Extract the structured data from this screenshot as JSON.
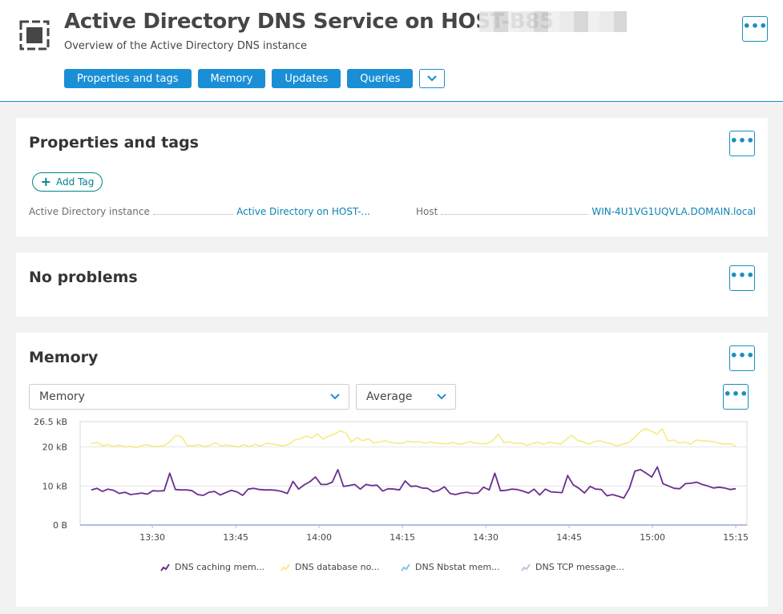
{
  "header": {
    "title": "Active Directory DNS Service on HOST-B85",
    "subtitle": "Overview of the Active Directory DNS instance",
    "nav_buttons": [
      "Properties and tags",
      "Memory",
      "Updates",
      "Queries"
    ],
    "more_icon": "chevron-down-icon",
    "menu_icon": "more-dots-icon"
  },
  "properties_card": {
    "title": "Properties and tags",
    "add_tag_label": "Add Tag",
    "props": [
      {
        "label": "Active Directory instance",
        "value": "Active Directory on HOST-..."
      },
      {
        "label": "Host",
        "value": "WIN-4U1VG1UQVLA.DOMAIN.local"
      }
    ]
  },
  "problems_card": {
    "title": "No problems"
  },
  "memory_card": {
    "title": "Memory",
    "metric_select": "Memory",
    "aggregation_select": "Average"
  },
  "colors": {
    "accent": "#1a8fd5",
    "link": "#0b84b5",
    "purple": "#6a2f8f",
    "yellow": "#f5eb83",
    "blue": "#7fc4e8",
    "lavender": "#c7c1dc"
  },
  "chart_data": {
    "type": "line",
    "y_ticks": [
      "26.5 kB",
      "20 kB",
      "10 kB",
      "0 B"
    ],
    "ylim": [
      0,
      26.5
    ],
    "y_tick_values": [
      26.5,
      20,
      10,
      0
    ],
    "x_ticks": [
      "13:30",
      "13:45",
      "14:00",
      "14:15",
      "14:30",
      "14:45",
      "15:00",
      "15:15"
    ],
    "x_tick_minutes": [
      30,
      45,
      60,
      75,
      90,
      105,
      120,
      135
    ],
    "xlim_minutes": [
      17,
      137
    ],
    "series": [
      {
        "name": "DNS caching mem...",
        "color": "#6a2f8f",
        "values": [
          9.0,
          9.4,
          8.6,
          9.2,
          8.9,
          8.1,
          8.4,
          7.8,
          8.0,
          8.2,
          7.9,
          8.8,
          8.7,
          8.8,
          13.3,
          9.1,
          9.0,
          9.0,
          8.8,
          7.8,
          7.6,
          8.4,
          8.6,
          7.7,
          8.3,
          8.9,
          8.5,
          7.6,
          9.2,
          9.4,
          9.1,
          9.0,
          9.0,
          8.9,
          8.6,
          8.1,
          11.2,
          9.2,
          10.3,
          11.1,
          12.3,
          10.4,
          10.4,
          11.0,
          14.2,
          9.9,
          10.1,
          10.4,
          9.2,
          10.4,
          10.1,
          10.2,
          8.7,
          9.3,
          9.2,
          9.0,
          11.3,
          9.9,
          10.0,
          9.5,
          9.4,
          8.5,
          8.9,
          9.8,
          8.1,
          7.8,
          8.2,
          8.4,
          8.1,
          8.2,
          9.7,
          9.0,
          13.3,
          8.8,
          8.9,
          9.2,
          9.1,
          8.7,
          8.2,
          9.2,
          7.7,
          9.2,
          8.5,
          8.4,
          8.3,
          12.7,
          10.3,
          9.4,
          8.2,
          9.9,
          9.2,
          9.1,
          7.5,
          7.8,
          7.4,
          6.9,
          9.4,
          13.8,
          14.2,
          13.3,
          12.3,
          14.9,
          10.6,
          10.0,
          9.4,
          9.3,
          10.6,
          10.7,
          11.0,
          10.4,
          10.0,
          9.5,
          9.7,
          9.5,
          9.1,
          9.3
        ]
      },
      {
        "name": "DNS database no...",
        "color": "#f5eb83",
        "values": [
          20.9,
          21.2,
          20.3,
          20.6,
          20.1,
          20.5,
          20.0,
          20.2,
          19.8,
          20.4,
          20.6,
          20.1,
          20.2,
          20.4,
          21.5,
          23.0,
          22.6,
          20.4,
          20.3,
          20.6,
          20.1,
          20.4,
          21.1,
          20.3,
          20.5,
          20.3,
          20.0,
          20.6,
          20.1,
          20.7,
          20.2,
          21.0,
          20.8,
          20.5,
          20.3,
          20.7,
          21.8,
          22.1,
          22.8,
          22.3,
          23.4,
          22.0,
          22.8,
          23.3,
          24.1,
          23.7,
          21.3,
          22.4,
          21.6,
          22.1,
          21.0,
          21.3,
          21.6,
          21.1,
          21.0,
          20.9,
          21.5,
          21.2,
          21.4,
          21.0,
          21.3,
          21.0,
          20.9,
          20.8,
          21.2,
          20.7,
          20.9,
          21.4,
          21.0,
          20.8,
          20.9,
          21.6,
          23.3,
          21.1,
          21.3,
          20.9,
          21.0,
          20.4,
          20.9,
          21.2,
          20.7,
          21.2,
          21.0,
          20.7,
          22.0,
          23.0,
          21.7,
          21.3,
          20.7,
          21.4,
          21.6,
          21.1,
          20.8,
          20.3,
          20.7,
          21.1,
          22.3,
          23.8,
          24.7,
          24.1,
          23.3,
          24.6,
          21.5,
          21.8,
          21.0,
          21.3,
          20.7,
          21.8,
          21.6,
          21.5,
          21.4,
          21.0,
          20.7,
          20.9,
          20.2
        ]
      },
      {
        "name": "DNS Nbstat mem...",
        "color": "#7fc4e8",
        "values": [
          0.2,
          0.2,
          0.2,
          0.2,
          0.2,
          0.2
        ]
      },
      {
        "name": "DNS TCP message...",
        "color": "#c7c1dc",
        "values": [
          0.1,
          0.1,
          0.1,
          0.1,
          0.1,
          0.1
        ]
      }
    ]
  }
}
